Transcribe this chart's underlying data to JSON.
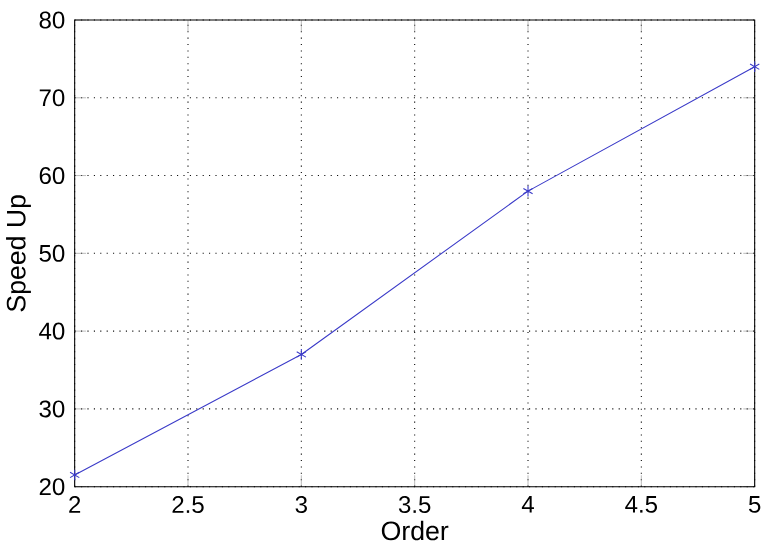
{
  "chart_data": {
    "type": "line",
    "xlabel": "Order",
    "ylabel": "Speed Up",
    "x": [
      2,
      3,
      4,
      5
    ],
    "series": [
      {
        "color": "#3a3ac8",
        "values": [
          21.5,
          37,
          58,
          74
        ]
      }
    ],
    "xlim": [
      2,
      5
    ],
    "ylim": [
      20,
      80
    ],
    "xticks": [
      2,
      2.5,
      3,
      3.5,
      4,
      4.5,
      5
    ],
    "yticks": [
      20,
      30,
      40,
      50,
      60,
      70,
      80
    ],
    "grid": true,
    "marker": "cross",
    "line_style": "solid"
  }
}
